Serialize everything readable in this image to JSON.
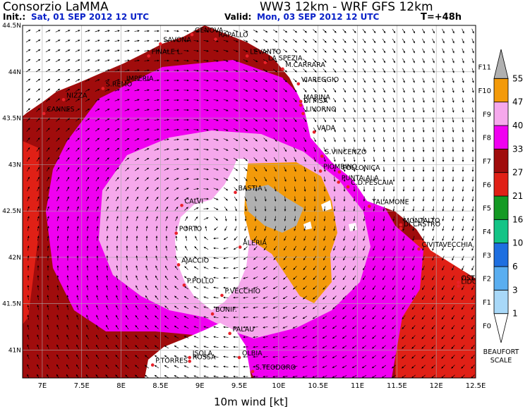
{
  "header": {
    "org": "Consorzio LaMMA",
    "model": "WW3 12km - WRF GFS 12km",
    "init_label": "Init.:",
    "init_value": "Sat, 01 SEP 2012   12 UTC",
    "valid_label": "Valid:",
    "valid_value": "Mon, 03 SEP 2012   12 UTC",
    "lead": "T=+48h"
  },
  "caption": "10m wind [kt]",
  "axes": {
    "lon_ticks": [
      "7E",
      "7.5E",
      "8E",
      "8.5E",
      "9E",
      "9.5E",
      "10E",
      "10.5E",
      "11E",
      "11.5E",
      "12E",
      "12.5E"
    ],
    "lat_ticks": [
      "44.5N",
      "44N",
      "43.5N",
      "43N",
      "42.5N",
      "42N",
      "41.5N",
      "41N"
    ]
  },
  "legend": {
    "title_1": "BEAUFORT",
    "title_2": "SCALE",
    "knots": [
      "1",
      "3",
      "6",
      "10",
      "16",
      "21",
      "27",
      "33",
      "40",
      "47",
      "55"
    ],
    "beaufort": [
      "F0",
      "F1",
      "F2",
      "F3",
      "F4",
      "F5",
      "F6",
      "F7",
      "F8",
      "F9",
      "F10",
      "F11"
    ],
    "colors": [
      "#ffffff",
      "#a8d8f8",
      "#5aaef0",
      "#1e6fe0",
      "#13c486",
      "#149a24",
      "#e02016",
      "#a00c0c",
      "#f000f0",
      "#f6a8ec",
      "#f39a0a",
      "#b0b0b0"
    ]
  },
  "places": [
    {
      "name": "GENOVA",
      "lon": 8.9,
      "lat": 44.4
    },
    {
      "name": "SAVONA",
      "lon": 8.5,
      "lat": 44.3
    },
    {
      "name": "RAPALLO",
      "lon": 9.2,
      "lat": 44.35
    },
    {
      "name": "FINALE L.",
      "lon": 8.35,
      "lat": 44.17
    },
    {
      "name": "LEVANTO",
      "lon": 9.6,
      "lat": 44.17
    },
    {
      "name": "LA SPEZIA",
      "lon": 9.83,
      "lat": 44.1
    },
    {
      "name": "M.CARRARA",
      "lon": 10.05,
      "lat": 44.03
    },
    {
      "name": "IMPERIA",
      "lon": 8.03,
      "lat": 43.88
    },
    {
      "name": "S.REMO",
      "lon": 7.77,
      "lat": 43.82
    },
    {
      "name": "VIAREGGIO",
      "lon": 10.25,
      "lat": 43.87
    },
    {
      "name": "NIZZA",
      "lon": 7.27,
      "lat": 43.7
    },
    {
      "name": "MARINA",
      "lon": 10.28,
      "lat": 43.68
    },
    {
      "name": "DI PISA",
      "lon": 10.28,
      "lat": 43.64
    },
    {
      "name": "CANNES",
      "lon": 7.02,
      "lat": 43.55
    },
    {
      "name": "LIVORNO",
      "lon": 10.31,
      "lat": 43.55
    },
    {
      "name": "VADA",
      "lon": 10.45,
      "lat": 43.35
    },
    {
      "name": "S.VINCENZO",
      "lon": 10.55,
      "lat": 43.09
    },
    {
      "name": "PIOMBINO",
      "lon": 10.53,
      "lat": 42.93
    },
    {
      "name": "FOLLONICA",
      "lon": 10.77,
      "lat": 42.92
    },
    {
      "name": "PUNTA ALA",
      "lon": 10.76,
      "lat": 42.81
    },
    {
      "name": "C.D.PESCAIA",
      "lon": 10.88,
      "lat": 42.76
    },
    {
      "name": "TALAMONE",
      "lon": 11.15,
      "lat": 42.55
    },
    {
      "name": "MONTALTO",
      "lon": 11.55,
      "lat": 42.35
    },
    {
      "name": "DI CASTRO",
      "lon": 11.55,
      "lat": 42.31
    },
    {
      "name": "CIVITAVECCHIA",
      "lon": 11.78,
      "lat": 42.09
    },
    {
      "name": "OSTIA",
      "lon": 12.28,
      "lat": 41.73
    },
    {
      "name": "LIDO",
      "lon": 12.28,
      "lat": 41.69
    },
    {
      "name": "BASTIA",
      "lon": 9.45,
      "lat": 42.7
    },
    {
      "name": "CALVI",
      "lon": 8.77,
      "lat": 42.56
    },
    {
      "name": "PORTO",
      "lon": 8.7,
      "lat": 42.26
    },
    {
      "name": "ALERIA",
      "lon": 9.51,
      "lat": 42.11
    },
    {
      "name": "AJACCIO",
      "lon": 8.73,
      "lat": 41.92
    },
    {
      "name": "P.POLLO",
      "lon": 8.8,
      "lat": 41.7
    },
    {
      "name": "P.VECCHIO",
      "lon": 9.28,
      "lat": 41.59
    },
    {
      "name": "BONIF.",
      "lon": 9.16,
      "lat": 41.39
    },
    {
      "name": "PALAU",
      "lon": 9.38,
      "lat": 41.18
    },
    {
      "name": "OLBIA",
      "lon": 9.5,
      "lat": 40.92
    },
    {
      "name": "ISOLA",
      "lon": 8.87,
      "lat": 40.92
    },
    {
      "name": "ROSSA",
      "lon": 8.87,
      "lat": 40.88
    },
    {
      "name": "S.TEODORO",
      "lon": 9.67,
      "lat": 40.77
    },
    {
      "name": "P.TORRES",
      "lon": 8.4,
      "lat": 40.84
    }
  ]
}
